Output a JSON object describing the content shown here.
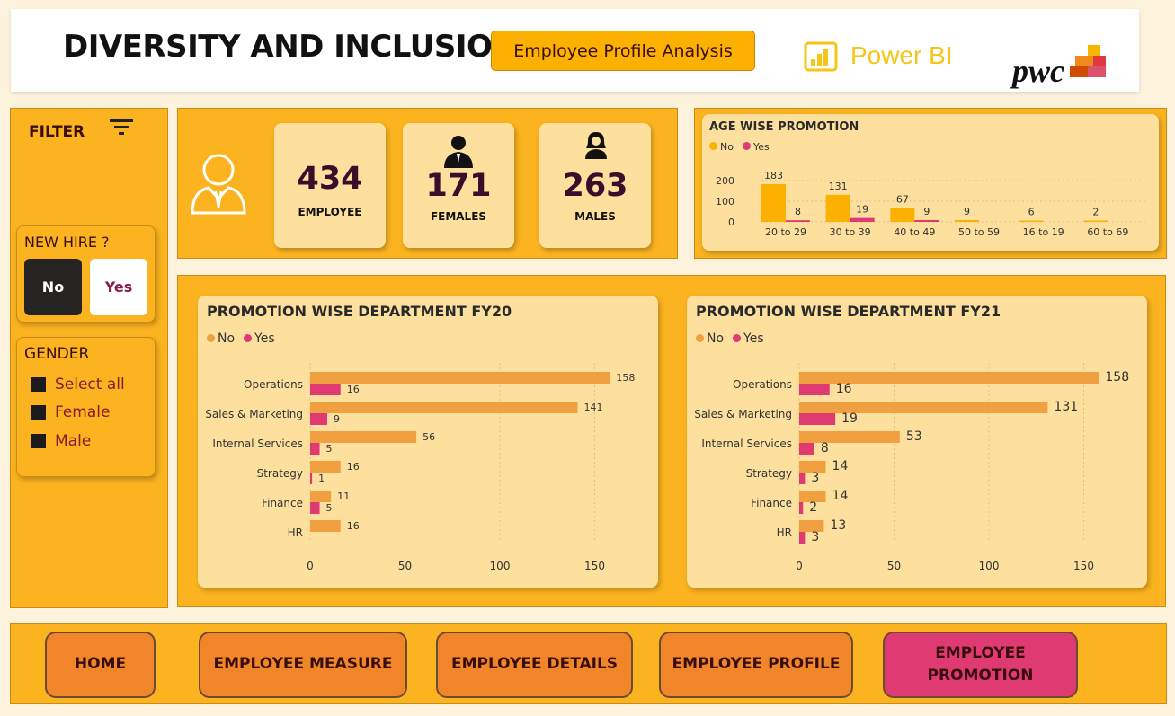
{
  "header": {
    "title": "DIVERSITY AND INCLUSION",
    "subtitle": "Employee Profile Analysis",
    "powerbi_label": "Power BI",
    "pwc_label": "pwc"
  },
  "filter": {
    "label": "FILTER",
    "new_hire": {
      "title": "NEW HIRE ?",
      "options": [
        "No",
        "Yes"
      ],
      "selected": "No"
    },
    "gender": {
      "title": "GENDER",
      "options": [
        "Select all",
        "Female",
        "Male"
      ]
    }
  },
  "kpis": {
    "employee": {
      "value": "434",
      "label": "EMPLOYEE"
    },
    "females": {
      "value": "171",
      "label": "FEMALES"
    },
    "males": {
      "value": "263",
      "label": "MALES"
    }
  },
  "colors": {
    "no": "#f0a040",
    "yes": "#e03a73",
    "age_no": "#fcb000",
    "panel": "#fbb41f",
    "card": "#fde09e",
    "nav": "#f0852a",
    "nav_active": "#e03a73"
  },
  "chart_data": [
    {
      "type": "bar",
      "title": "AGE WISE PROMOTION",
      "legend": [
        "No",
        "Yes"
      ],
      "categories": [
        "20 to 29",
        "30 to 39",
        "40 to 49",
        "50 to 59",
        "16 to 19",
        "60 to 69"
      ],
      "series": [
        {
          "name": "No",
          "values": [
            183,
            131,
            67,
            9,
            6,
            2
          ]
        },
        {
          "name": "Yes",
          "values": [
            8,
            19,
            9,
            null,
            null,
            null
          ]
        }
      ],
      "yticks": [
        "200",
        "100",
        "0"
      ],
      "ylim": [
        0,
        200
      ]
    },
    {
      "type": "bar",
      "orientation": "horizontal",
      "title": "PROMOTION WISE DEPARTMENT FY20",
      "legend": [
        "No",
        "Yes"
      ],
      "categories": [
        "Operations",
        "Sales & Marketing",
        "Internal Services",
        "Strategy",
        "Finance",
        "HR"
      ],
      "series": [
        {
          "name": "No",
          "values": [
            158,
            141,
            56,
            16,
            11,
            16
          ]
        },
        {
          "name": "Yes",
          "values": [
            16,
            9,
            5,
            1,
            5,
            null
          ]
        }
      ],
      "xticks": [
        "0",
        "50",
        "100",
        "150"
      ],
      "xlim": [
        0,
        175
      ]
    },
    {
      "type": "bar",
      "orientation": "horizontal",
      "title": "PROMOTION WISE DEPARTMENT FY21",
      "legend": [
        "No",
        "Yes"
      ],
      "categories": [
        "Operations",
        "Sales & Marketing",
        "Internal Services",
        "Strategy",
        "Finance",
        "HR"
      ],
      "series": [
        {
          "name": "No",
          "values": [
            158,
            131,
            53,
            14,
            14,
            13
          ]
        },
        {
          "name": "Yes",
          "values": [
            16,
            19,
            8,
            3,
            2,
            3
          ]
        }
      ],
      "xticks": [
        "0",
        "50",
        "100",
        "150"
      ],
      "xlim": [
        0,
        175
      ]
    }
  ],
  "nav": {
    "items": [
      "HOME",
      "EMPLOYEE MEASURE",
      "EMPLOYEE DETAILS",
      "EMPLOYEE PROFILE",
      "EMPLOYEE PROMOTION"
    ],
    "active": "EMPLOYEE PROMOTION"
  }
}
